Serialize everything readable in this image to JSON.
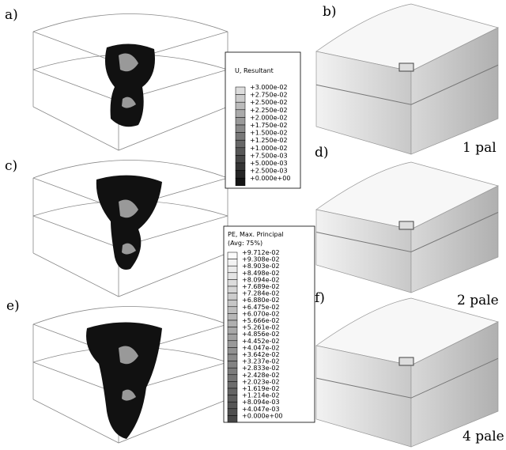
{
  "panels": [
    {
      "label": "a)"
    },
    {
      "label": "b)",
      "caption": "1 pal"
    },
    {
      "label": "c)"
    },
    {
      "label": "d)",
      "caption": "2 pale"
    },
    {
      "label": "e)"
    },
    {
      "label": "f)",
      "caption": "4 pale"
    }
  ],
  "legends": [
    {
      "title": "U, Resultant",
      "values": [
        "+3.000e-02",
        "+2.750e-02",
        "+2.500e-02",
        "+2.250e-02",
        "+2.000e-02",
        "+1.750e-02",
        "+1.500e-02",
        "+1.250e-02",
        "+1.000e-02",
        "+7.500e-03",
        "+5.000e-03",
        "+2.500e-03",
        "+0.000e+00"
      ]
    },
    {
      "title": "PE, Max. Principal",
      "subtitle": "(Avg: 75%)",
      "values": [
        "+9.712e-02",
        "+9.308e-02",
        "+8.903e-02",
        "+8.498e-02",
        "+8.094e-02",
        "+7.689e-02",
        "+7.284e-02",
        "+6.880e-02",
        "+6.475e-02",
        "+6.070e-02",
        "+5.666e-02",
        "+5.261e-02",
        "+4.856e-02",
        "+4.452e-02",
        "+4.047e-02",
        "+3.642e-02",
        "+3.237e-02",
        "+2.833e-02",
        "+2.428e-02",
        "+2.023e-02",
        "+1.619e-02",
        "+1.214e-02",
        "+8.094e-03",
        "+4.047e-03",
        "+0.000e+00"
      ]
    }
  ]
}
